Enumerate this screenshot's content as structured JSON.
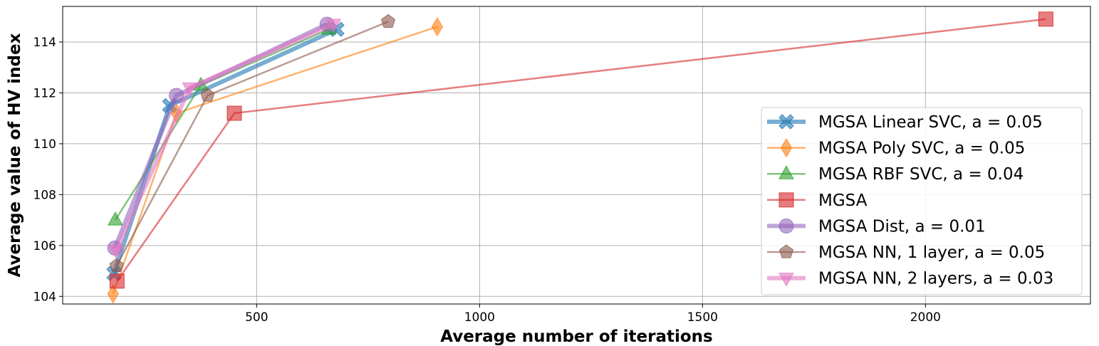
{
  "chart_data": {
    "type": "line",
    "title": "",
    "xlabel": "Average number of iterations",
    "ylabel": "Average value of HV index",
    "xlim": [
      65,
      2370
    ],
    "ylim": [
      103.7,
      115.4
    ],
    "xticks": [
      500,
      1000,
      1500,
      2000
    ],
    "yticks": [
      104,
      106,
      108,
      110,
      112,
      114
    ],
    "grid": true,
    "legend_position": "lower-right",
    "series": [
      {
        "name": "MGSA Linear SVC, a = 0.05",
        "color": "#1f77b4",
        "marker": "X",
        "width": "thick",
        "x": [
          180,
          305,
          680
        ],
        "y": [
          104.9,
          111.5,
          114.5
        ]
      },
      {
        "name": "MGSA Poly SVC, a = 0.05",
        "color": "#ff7f0e",
        "marker": "diamond",
        "width": "normal",
        "x": [
          178,
          320,
          905
        ],
        "y": [
          104.1,
          111.2,
          114.6
        ]
      },
      {
        "name": "MGSA RBF SVC, a = 0.04",
        "color": "#2ca02c",
        "marker": "triangle-up",
        "width": "normal",
        "x": [
          183,
          375,
          662
        ],
        "y": [
          107.0,
          112.3,
          114.5
        ]
      },
      {
        "name": "MGSA",
        "color": "#d62728",
        "marker": "square",
        "width": "normal",
        "x": [
          187,
          450,
          2270
        ],
        "y": [
          104.6,
          111.2,
          114.9
        ]
      },
      {
        "name": "MGSA Dist, a = 0.01",
        "color": "#9467bd",
        "marker": "circle",
        "width": "thick",
        "x": [
          182,
          320,
          658
        ],
        "y": [
          105.9,
          111.9,
          114.7
        ]
      },
      {
        "name": "MGSA NN, 1 layer, a = 0.05",
        "color": "#8c564b",
        "marker": "pentagon",
        "width": "normal",
        "x": [
          186,
          390,
          795
        ],
        "y": [
          105.2,
          111.9,
          114.8
        ]
      },
      {
        "name": "MGSA NN, 2 layers, a = 0.03",
        "color": "#e377c2",
        "marker": "triangle-down",
        "width": "thick",
        "x": [
          185,
          350,
          672
        ],
        "y": [
          105.8,
          112.2,
          114.7
        ]
      }
    ]
  }
}
